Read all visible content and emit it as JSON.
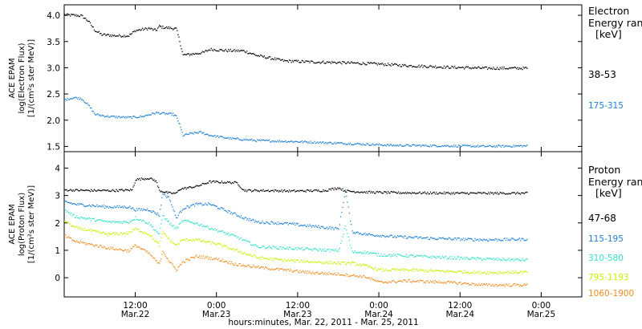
{
  "colors": {
    "black": "#000000",
    "blue": "#1e7fd6",
    "cyan": "#33e0c8",
    "yellow": "#c8f000",
    "orange": "#f08c1e"
  },
  "x_axis": {
    "title": "hours:minutes, Mar. 22, 2011 - Mar. 25, 2011",
    "ticks": [
      {
        "t": 12,
        "time": "12:00",
        "date": "Mar.22"
      },
      {
        "t": 24,
        "time": "0:00",
        "date": "Mar.23"
      },
      {
        "t": 36,
        "time": "12:00",
        "date": "Mar.23"
      },
      {
        "t": 48,
        "time": "0:00",
        "date": "Mar.24"
      },
      {
        "t": 60,
        "time": "12:00",
        "date": "Mar.24"
      },
      {
        "t": 72,
        "time": "0:00",
        "date": "Mar.25"
      }
    ]
  },
  "chart_data": [
    {
      "type": "scatter",
      "ylabel": [
        "ACE EPAM",
        "log(Electron Flux)",
        "[1/(cm²s ster MeV)]"
      ],
      "ylim": [
        1.4,
        4.2
      ],
      "yticks": [
        "1.5",
        "2.0",
        "2.5",
        "3.0",
        "3.5",
        "4.0"
      ],
      "xlim": [
        1.5,
        78
      ],
      "legend": {
        "title": [
          "Electron",
          "Energy ran",
          "[keV]"
        ],
        "placement": "right"
      },
      "series": [
        {
          "name": "38-53",
          "color": "black",
          "points": [
            [
              1.5,
              4.02
            ],
            [
              4,
              4.0
            ],
            [
              5,
              3.9
            ],
            [
              6,
              3.72
            ],
            [
              7,
              3.64
            ],
            [
              9,
              3.62
            ],
            [
              11,
              3.62
            ],
            [
              12,
              3.72
            ],
            [
              14,
              3.76
            ],
            [
              15,
              3.72
            ],
            [
              15.5,
              3.8
            ],
            [
              16,
              3.78
            ],
            [
              17.5,
              3.76
            ],
            [
              18,
              3.75
            ],
            [
              18.5,
              3.52
            ],
            [
              19,
              3.25
            ],
            [
              21,
              3.28
            ],
            [
              22,
              3.3
            ],
            [
              23,
              3.36
            ],
            [
              25,
              3.34
            ],
            [
              28,
              3.33
            ],
            [
              30,
              3.24
            ],
            [
              34,
              3.14
            ],
            [
              38,
              3.12
            ],
            [
              44,
              3.1
            ],
            [
              48,
              3.08
            ],
            [
              52,
              3.05
            ],
            [
              58,
              3.02
            ],
            [
              64,
              3.0
            ],
            [
              70,
              3.0
            ]
          ],
          "noise": 0.025
        },
        {
          "name": "175-315",
          "color": "blue",
          "points": [
            [
              1.5,
              2.4
            ],
            [
              3,
              2.44
            ],
            [
              4,
              2.42
            ],
            [
              5,
              2.3
            ],
            [
              6,
              2.12
            ],
            [
              8,
              2.08
            ],
            [
              11,
              2.06
            ],
            [
              13,
              2.08
            ],
            [
              15,
              2.15
            ],
            [
              17.5,
              2.12
            ],
            [
              18,
              2.08
            ],
            [
              18.5,
              1.92
            ],
            [
              19,
              1.72
            ],
            [
              20,
              1.75
            ],
            [
              21.5,
              1.78
            ],
            [
              23,
              1.72
            ],
            [
              26,
              1.66
            ],
            [
              30,
              1.62
            ],
            [
              36,
              1.6
            ],
            [
              40,
              1.58
            ],
            [
              44,
              1.56
            ],
            [
              50,
              1.53
            ],
            [
              58,
              1.52
            ],
            [
              64,
              1.51
            ],
            [
              70,
              1.52
            ]
          ],
          "noise": 0.02
        }
      ]
    },
    {
      "type": "scatter",
      "ylabel": [
        "ACE EPAM",
        "log(Proton Flux)",
        "[1/(cm²s ster MeV)]"
      ],
      "ylim": [
        -0.7,
        4.6
      ],
      "yticks": [
        "0",
        "1",
        "2",
        "3",
        "4"
      ],
      "xlim": [
        1.5,
        78
      ],
      "legend": {
        "title": [
          "Proton",
          "Energy ran",
          "[keV]"
        ],
        "placement": "right"
      },
      "series": [
        {
          "name": "47-68",
          "color": "black",
          "points": [
            [
              1.5,
              3.22
            ],
            [
              5,
              3.2
            ],
            [
              9,
              3.2
            ],
            [
              11.5,
              3.22
            ],
            [
              12,
              3.6
            ],
            [
              14,
              3.65
            ],
            [
              15,
              3.55
            ],
            [
              15.5,
              3.2
            ],
            [
              17,
              3.1
            ],
            [
              18,
              3.1
            ],
            [
              18.5,
              3.25
            ],
            [
              21,
              3.35
            ],
            [
              23,
              3.52
            ],
            [
              27,
              3.48
            ],
            [
              28,
              3.2
            ],
            [
              31,
              3.2
            ],
            [
              35,
              3.18
            ],
            [
              40,
              3.2
            ],
            [
              42,
              3.3
            ],
            [
              43,
              3.18
            ],
            [
              46,
              3.14
            ],
            [
              50,
              3.12
            ],
            [
              60,
              3.1
            ],
            [
              70,
              3.1
            ]
          ],
          "noise": 0.04
        },
        {
          "name": "115-195",
          "color": "blue",
          "points": [
            [
              1.5,
              2.8
            ],
            [
              3,
              2.7
            ],
            [
              8,
              2.6
            ],
            [
              11,
              2.6
            ],
            [
              12,
              2.5
            ],
            [
              14,
              2.5
            ],
            [
              15.5,
              2.3
            ],
            [
              16,
              3.1
            ],
            [
              17,
              2.9
            ],
            [
              18,
              2.2
            ],
            [
              19,
              2.55
            ],
            [
              21,
              2.7
            ],
            [
              23,
              2.7
            ],
            [
              26,
              2.4
            ],
            [
              28,
              2.2
            ],
            [
              30,
              2.05
            ],
            [
              34,
              2.0
            ],
            [
              38,
              1.9
            ],
            [
              42,
              1.8
            ],
            [
              43,
              3.2
            ],
            [
              44,
              1.7
            ],
            [
              46,
              1.6
            ],
            [
              50,
              1.52
            ],
            [
              56,
              1.45
            ],
            [
              64,
              1.4
            ],
            [
              70,
              1.42
            ]
          ],
          "noise": 0.05
        },
        {
          "name": "310-580",
          "color": "cyan",
          "points": [
            [
              1.5,
              2.5
            ],
            [
              3,
              2.25
            ],
            [
              8,
              2.05
            ],
            [
              11,
              2.05
            ],
            [
              12,
              2.2
            ],
            [
              14,
              2.0
            ],
            [
              15.5,
              1.6
            ],
            [
              16,
              2.3
            ],
            [
              17,
              2.0
            ],
            [
              18,
              1.8
            ],
            [
              19,
              2.1
            ],
            [
              21,
              2.0
            ],
            [
              24,
              1.75
            ],
            [
              27,
              1.5
            ],
            [
              30,
              1.15
            ],
            [
              34,
              1.1
            ],
            [
              38,
              1.05
            ],
            [
              42,
              1.0
            ],
            [
              43,
              1.9
            ],
            [
              44,
              0.95
            ],
            [
              46,
              0.95
            ],
            [
              48,
              0.85
            ],
            [
              52,
              0.82
            ],
            [
              58,
              0.75
            ],
            [
              64,
              0.7
            ],
            [
              70,
              0.66
            ]
          ],
          "noise": 0.05
        },
        {
          "name": "795-1193",
          "color": "yellow",
          "points": [
            [
              1.5,
              2.1
            ],
            [
              3,
              1.85
            ],
            [
              8,
              1.6
            ],
            [
              11,
              1.65
            ],
            [
              12,
              1.8
            ],
            [
              14,
              1.6
            ],
            [
              15.5,
              1.2
            ],
            [
              16,
              1.7
            ],
            [
              17,
              1.4
            ],
            [
              18,
              1.2
            ],
            [
              19,
              1.4
            ],
            [
              21,
              1.4
            ],
            [
              24,
              1.25
            ],
            [
              27,
              1.0
            ],
            [
              30,
              0.75
            ],
            [
              34,
              0.65
            ],
            [
              38,
              0.6
            ],
            [
              42,
              0.55
            ],
            [
              44,
              0.55
            ],
            [
              46,
              0.45
            ],
            [
              48,
              0.3
            ],
            [
              52,
              0.3
            ],
            [
              58,
              0.25
            ],
            [
              64,
              0.2
            ],
            [
              70,
              0.22
            ]
          ],
          "noise": 0.05
        },
        {
          "name": "1060-1900",
          "color": "orange",
          "points": [
            [
              1.5,
              1.55
            ],
            [
              3,
              1.35
            ],
            [
              8,
              1.1
            ],
            [
              11,
              1.0
            ],
            [
              12,
              1.2
            ],
            [
              14,
              0.9
            ],
            [
              15.5,
              0.5
            ],
            [
              16,
              1.0
            ],
            [
              17,
              0.6
            ],
            [
              18,
              0.3
            ],
            [
              19,
              0.6
            ],
            [
              21,
              0.8
            ],
            [
              24,
              0.7
            ],
            [
              27,
              0.5
            ],
            [
              30,
              0.4
            ],
            [
              34,
              0.3
            ],
            [
              38,
              0.2
            ],
            [
              42,
              0.15
            ],
            [
              44,
              0.1
            ],
            [
              46,
              0.05
            ],
            [
              48,
              -0.15
            ],
            [
              52,
              -0.1
            ],
            [
              58,
              -0.15
            ],
            [
              64,
              -0.25
            ],
            [
              70,
              -0.25
            ]
          ],
          "noise": 0.05
        }
      ]
    }
  ]
}
